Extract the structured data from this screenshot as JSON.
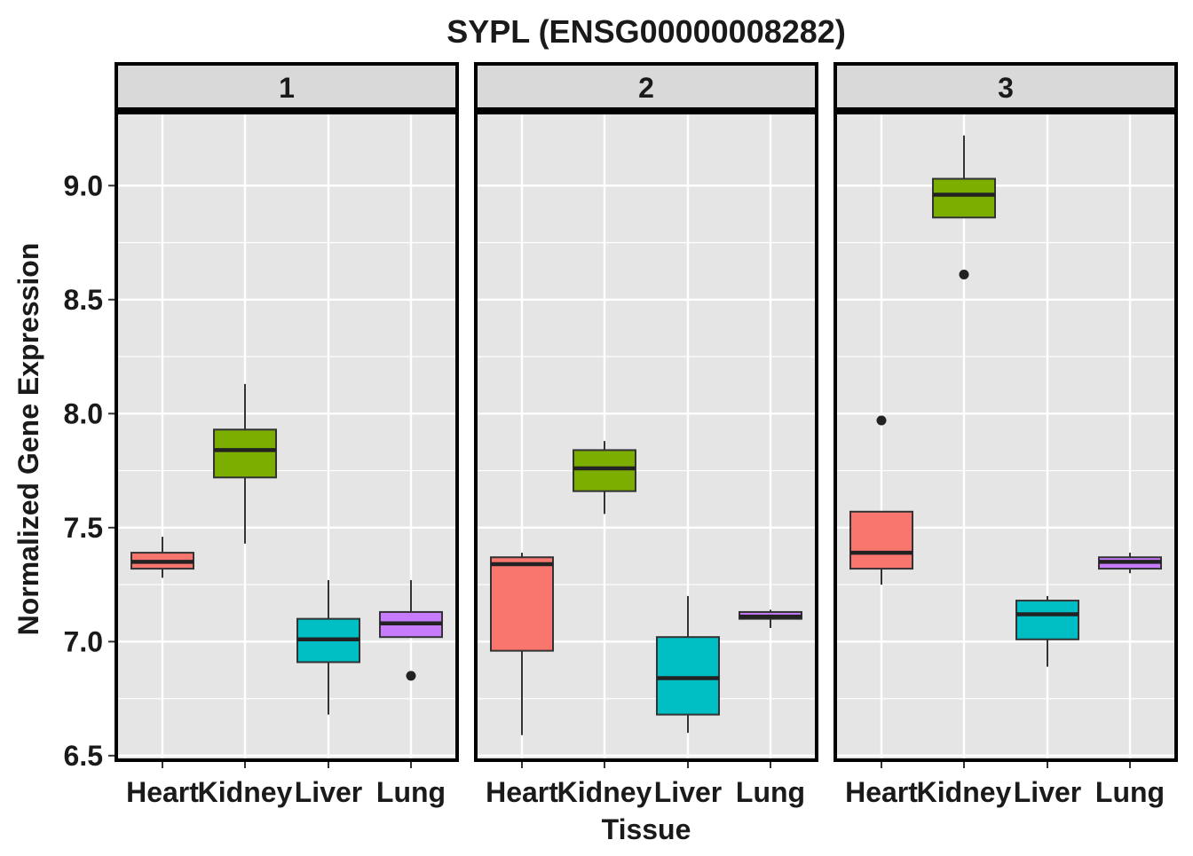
{
  "chart_data": {
    "type": "boxplot",
    "title": "SYPL (ENSG00000008282)",
    "xlabel": "Tissue",
    "ylabel": "Normalized Gene Expression",
    "ylim": [
      6.48,
      9.32
    ],
    "yticks": [
      6.5,
      7.0,
      7.5,
      8.0,
      8.5,
      9.0
    ],
    "ytick_labels": [
      "6.5",
      "7.0",
      "7.5",
      "8.0",
      "8.5",
      "9.0"
    ],
    "categories": [
      "Heart",
      "Kidney",
      "Liver",
      "Lung"
    ],
    "colors": {
      "Heart": "#F8766D",
      "Kidney": "#7CAE00",
      "Liver": "#00BFC4",
      "Lung": "#C77CFF",
      "panel_bg": "#e5e5e5",
      "strip_bg": "#d9d9d9",
      "grid": "#ffffff"
    },
    "grid": true,
    "facets": [
      {
        "label": "1",
        "boxes": [
          {
            "category": "Heart",
            "min": 7.28,
            "q1": 7.32,
            "median": 7.35,
            "q3": 7.39,
            "max": 7.46,
            "outliers": []
          },
          {
            "category": "Kidney",
            "min": 7.43,
            "q1": 7.72,
            "median": 7.84,
            "q3": 7.93,
            "max": 8.13,
            "outliers": []
          },
          {
            "category": "Liver",
            "min": 6.68,
            "q1": 6.91,
            "median": 7.01,
            "q3": 7.1,
            "max": 7.27,
            "outliers": []
          },
          {
            "category": "Lung",
            "min": 7.02,
            "q1": 7.02,
            "median": 7.08,
            "q3": 7.13,
            "max": 7.27,
            "outliers": [
              6.85
            ]
          }
        ]
      },
      {
        "label": "2",
        "boxes": [
          {
            "category": "Heart",
            "min": 6.59,
            "q1": 6.96,
            "median": 7.34,
            "q3": 7.37,
            "max": 7.39,
            "outliers": []
          },
          {
            "category": "Kidney",
            "min": 7.56,
            "q1": 7.66,
            "median": 7.76,
            "q3": 7.84,
            "max": 7.88,
            "outliers": []
          },
          {
            "category": "Liver",
            "min": 6.6,
            "q1": 6.68,
            "median": 6.84,
            "q3": 7.02,
            "max": 7.2,
            "outliers": []
          },
          {
            "category": "Lung",
            "min": 7.06,
            "q1": 7.1,
            "median": 7.11,
            "q3": 7.13,
            "max": 7.14,
            "outliers": []
          }
        ]
      },
      {
        "label": "3",
        "boxes": [
          {
            "category": "Heart",
            "min": 7.25,
            "q1": 7.32,
            "median": 7.39,
            "q3": 7.57,
            "max": 7.57,
            "outliers": [
              7.97
            ]
          },
          {
            "category": "Kidney",
            "min": 8.86,
            "q1": 8.86,
            "median": 8.96,
            "q3": 9.03,
            "max": 9.22,
            "outliers": [
              8.61
            ]
          },
          {
            "category": "Liver",
            "min": 6.89,
            "q1": 7.01,
            "median": 7.12,
            "q3": 7.18,
            "max": 7.2,
            "outliers": []
          },
          {
            "category": "Lung",
            "min": 7.3,
            "q1": 7.32,
            "median": 7.35,
            "q3": 7.37,
            "max": 7.39,
            "outliers": []
          }
        ]
      }
    ]
  }
}
